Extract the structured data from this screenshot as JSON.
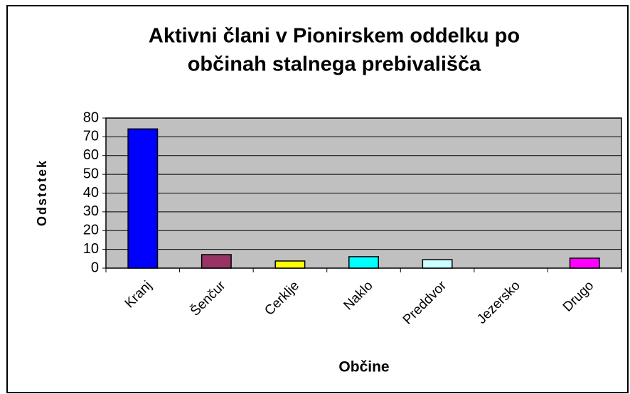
{
  "chart_data": {
    "type": "bar",
    "title": [
      "Aktivni člani v Pionirskem oddelku po",
      "občinah stalnega prebivališča"
    ],
    "x_label": "Občine",
    "y_label": "Odstotek",
    "categories": [
      "Kranj",
      "Šenčur",
      "Cerklje",
      "Naklo",
      "Preddvor",
      "Jezersko",
      "Drugo"
    ],
    "values": [
      74.2,
      7.2,
      3.8,
      6.1,
      4.5,
      0,
      5.3
    ],
    "colors": [
      "#0000ff",
      "#993366",
      "#ffff00",
      "#00ffff",
      "#ccffff",
      "#660066",
      "#ff00ff"
    ],
    "ylim": [
      0,
      80
    ],
    "yticks": [
      0,
      10,
      20,
      30,
      40,
      50,
      60,
      70,
      80
    ],
    "grid": true
  }
}
